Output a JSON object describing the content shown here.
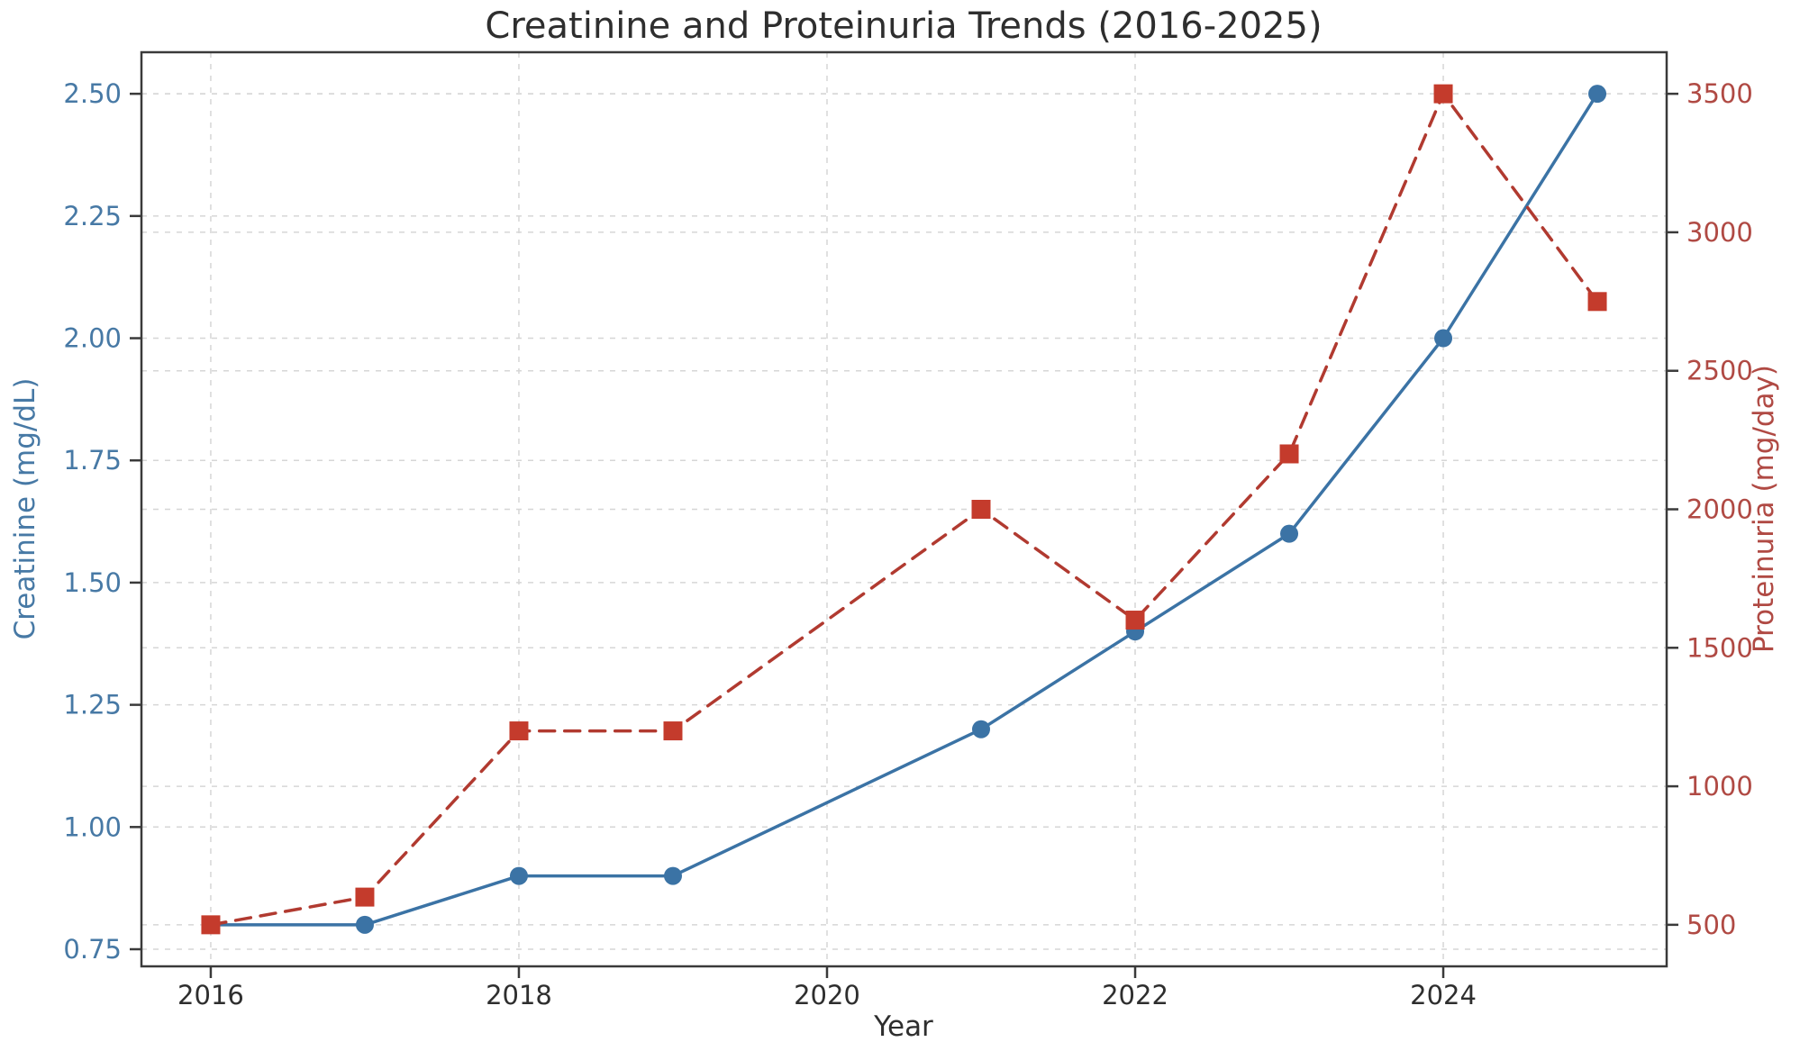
{
  "figure": {
    "background": "#ffffff"
  },
  "chart_data": {
    "type": "line",
    "title": "Creatinine and Proteinuria Trends (2016-2025)",
    "xlabel": "Year",
    "ylabel_left": "Creatinine (mg/dL)",
    "ylabel_right": "Proteinuria (mg/day)",
    "x": [
      2016,
      2017,
      2018,
      2019,
      2021,
      2022,
      2023,
      2024,
      2025
    ],
    "series": [
      {
        "name": "Creatinine",
        "axis": "left",
        "line_style": "solid",
        "marker": "circle",
        "color": "#3b73a5",
        "values": [
          0.8,
          0.8,
          0.9,
          0.9,
          1.2,
          1.4,
          1.6,
          2.0,
          2.5
        ]
      },
      {
        "name": "Proteinuria",
        "axis": "right",
        "line_style": "dashed",
        "marker": "square",
        "color": "#b13a30",
        "marker_color": "#c43b2c",
        "values": [
          500,
          600,
          1200,
          1200,
          2000,
          1600,
          2200,
          3500,
          2750
        ]
      }
    ],
    "x_tick_labels": [
      "2016",
      "2018",
      "2020",
      "2022",
      "2024"
    ],
    "left_tick_labels": [
      "0.75",
      "1.00",
      "1.25",
      "1.50",
      "1.75",
      "2.00",
      "2.25",
      "2.50"
    ],
    "right_tick_labels": [
      "500",
      "1000",
      "1500",
      "2000",
      "2500",
      "3000",
      "3500"
    ],
    "xlim": [
      2015.55,
      2025.45
    ],
    "ylim_left": [
      0.715,
      2.585
    ],
    "ylim_right": [
      350,
      3650
    ],
    "grid": true,
    "legend": "none",
    "colors": {
      "left_axis_text": "#4779a5",
      "right_axis_text": "#b04a44",
      "x_axis_text": "#2e2e2e",
      "title_text": "#2e2e2e",
      "grid": "#d6d6d6",
      "spine": "#3a3a3a"
    }
  }
}
